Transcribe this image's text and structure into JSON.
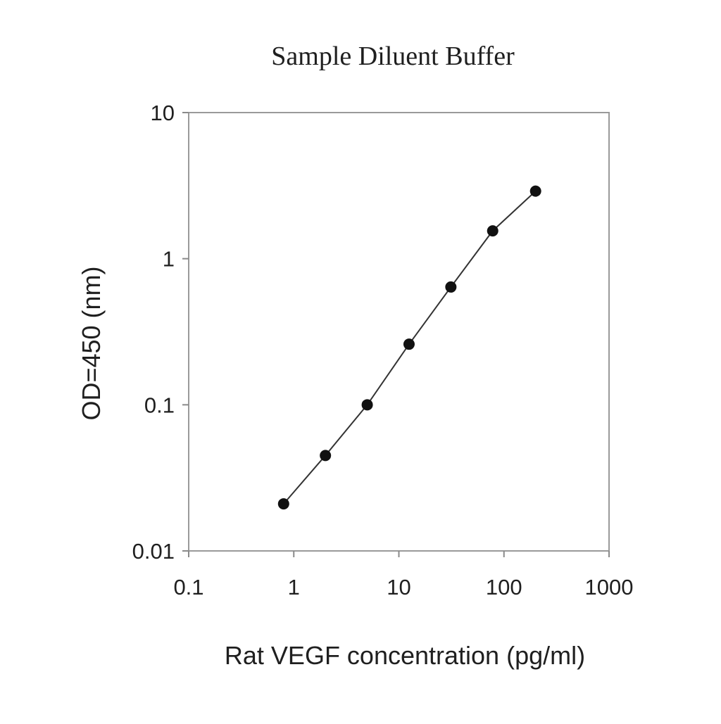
{
  "chart_data": {
    "type": "line",
    "title": "Sample Diluent Buffer",
    "xlabel": "Rat VEGF concentration (pg/ml)",
    "ylabel": "OD=450 (nm)",
    "x_scale": "log",
    "y_scale": "log",
    "xlim": [
      0.1,
      1000
    ],
    "ylim": [
      0.01,
      10
    ],
    "x_ticks": [
      0.1,
      1,
      10,
      100,
      1000
    ],
    "x_tick_labels": [
      "0.1",
      "1",
      "10",
      "100",
      "1000"
    ],
    "y_ticks": [
      0.01,
      0.1,
      1,
      10
    ],
    "y_tick_labels": [
      "0.01",
      "0.1",
      "1",
      "10"
    ],
    "grid": false,
    "legend": "none",
    "series": [
      {
        "x": [
          0.8,
          2,
          5,
          12.5,
          31.25,
          78.1,
          200
        ],
        "y": [
          0.021,
          0.045,
          0.1,
          0.26,
          0.64,
          1.55,
          2.9
        ],
        "marker": "circle",
        "line_color": "#333333",
        "marker_color": "#111111"
      }
    ]
  }
}
